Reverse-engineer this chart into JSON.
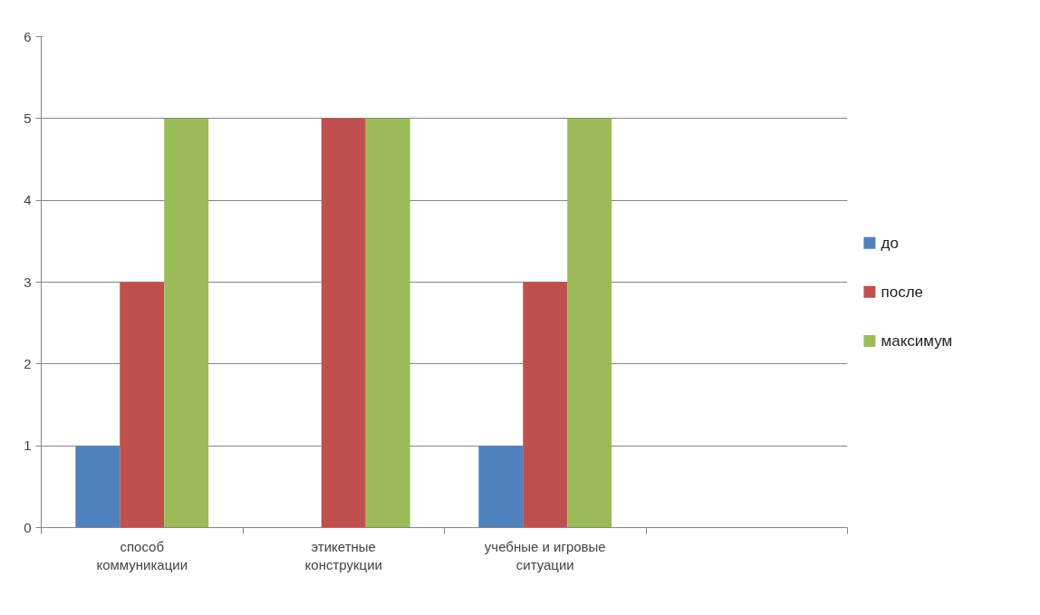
{
  "chart_data": {
    "type": "bar",
    "categories": [
      "способ коммуникации",
      "этикетные конструкции",
      "учебные и игровые ситуации",
      null
    ],
    "series": [
      {
        "name": "до",
        "color": "#4f81bd",
        "values": [
          1,
          0,
          1,
          null
        ]
      },
      {
        "name": "после",
        "color": "#c0504d",
        "values": [
          3,
          5,
          3,
          null
        ]
      },
      {
        "name": "максимум",
        "color": "#9bbb59",
        "values": [
          5,
          5,
          5,
          null
        ]
      }
    ],
    "ylim": [
      0,
      6
    ],
    "yticks": [
      0,
      1,
      2,
      3,
      4,
      5,
      6
    ],
    "grid": "y",
    "legend": "right"
  }
}
